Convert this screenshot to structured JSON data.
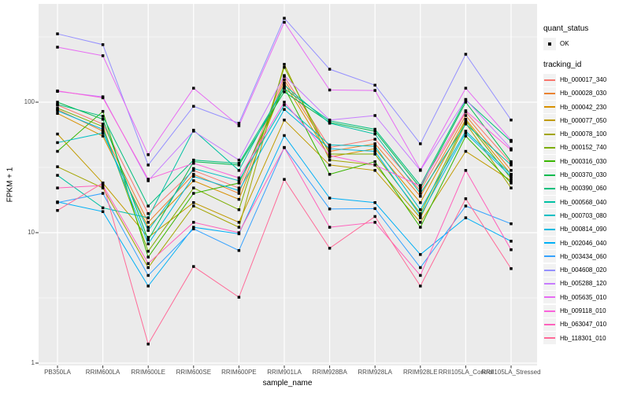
{
  "colors": {
    "background": "#FFFFFF",
    "panel_bg": "#EBEBEB",
    "grid_major": "#FFFFFF",
    "grid_minor": "#FFFFFF",
    "axis_text": "#4D4D4D",
    "axis_title": "#000000",
    "tick_mark": "#333333",
    "legend_key_bg": "#F2F2F2",
    "point_marker": "#000000"
  },
  "legend": {
    "position": "right",
    "quant_status": {
      "title": "quant_status",
      "items": [
        {
          "label": "OK",
          "marker": "black-point"
        }
      ]
    },
    "tracking_id": {
      "title": "tracking_id"
    }
  },
  "chart_data": {
    "type": "line",
    "title": "",
    "xlabel": "sample_name",
    "ylabel": "FPKM + 1",
    "yscale": "log10",
    "ylim": [
      0.9,
      565
    ],
    "y_ticks": [
      1,
      10,
      100
    ],
    "y_minor_ticks": [
      3.162,
      31.62,
      316.2
    ],
    "grid": true,
    "legend_position": "right",
    "marker": "small black square at every point (quant_status = OK)",
    "categories": [
      "PB350LA",
      "RRIM600LA",
      "RRIM600LE",
      "RRIM600SE",
      "RRIM600PE",
      "RRIM901LA",
      "RRIM928BA",
      "RRIM928LA",
      "RRIM928LE",
      "RRII105LA_Control",
      "RRII105LA_Stressed"
    ],
    "series": [
      {
        "name": "Hb_000017_340",
        "color": "#F8766D",
        "values": [
          95,
          68,
          14,
          30,
          22,
          157,
          45,
          52,
          21,
          84,
          34
        ]
      },
      {
        "name": "Hb_000028_030",
        "color": "#EA8331",
        "values": [
          88,
          60,
          12,
          28,
          20,
          148,
          42,
          48,
          19,
          79,
          30
        ]
      },
      {
        "name": "Hb_000042_230",
        "color": "#D89000",
        "values": [
          82,
          55,
          11,
          25,
          18,
          140,
          38,
          44,
          17,
          74,
          28
        ]
      },
      {
        "name": "Hb_000077_050",
        "color": "#C09B00",
        "values": [
          57,
          24,
          9.2,
          17,
          12,
          73,
          33,
          30,
          12,
          42,
          25
        ]
      },
      {
        "name": "Hb_000078_100",
        "color": "#A3A500",
        "values": [
          32,
          22,
          5.4,
          16,
          11,
          195,
          36,
          33,
          13,
          69,
          22
        ]
      },
      {
        "name": "Hb_000152_740",
        "color": "#7CAE00",
        "values": [
          90,
          65,
          7.2,
          22,
          15,
          185,
          40,
          40,
          14,
          72,
          26
        ]
      },
      {
        "name": "Hb_000316_030",
        "color": "#39B600",
        "values": [
          42,
          85,
          6.5,
          20,
          24,
          130,
          28,
          35,
          11,
          55,
          24
        ]
      },
      {
        "name": "Hb_000370_030",
        "color": "#00BB4E",
        "values": [
          100,
          74,
          8.8,
          35,
          33,
          120,
          70,
          60,
          22,
          100,
          35
        ]
      },
      {
        "name": "Hb_000390_060",
        "color": "#00BF7D",
        "values": [
          96,
          78,
          16,
          36,
          34,
          127,
          72,
          62,
          23,
          104,
          50
        ]
      },
      {
        "name": "Hb_000568_040",
        "color": "#00C1A3",
        "values": [
          27.5,
          15.5,
          13,
          61,
          30,
          135,
          69,
          57,
          20,
          68,
          33
        ]
      },
      {
        "name": "Hb_000703_080",
        "color": "#00BFC4",
        "values": [
          49,
          58,
          10.4,
          31,
          25,
          95,
          47,
          46,
          15,
          60,
          28
        ]
      },
      {
        "name": "Hb_000814_090",
        "color": "#00BAE0",
        "values": [
          86,
          62,
          8.2,
          27,
          21,
          88,
          44,
          42,
          13.5,
          58,
          27
        ]
      },
      {
        "name": "Hb_002046_040",
        "color": "#00B0F6",
        "values": [
          17.2,
          14.5,
          3.9,
          11,
          9.8,
          55.5,
          18.4,
          17,
          6.8,
          13,
          8.6
        ]
      },
      {
        "name": "Hb_003434_060",
        "color": "#35A2FF",
        "values": [
          17,
          20,
          4.7,
          10.7,
          7.3,
          45,
          15.2,
          15.3,
          5.4,
          16,
          11.7
        ]
      },
      {
        "name": "Hb_004608_020",
        "color": "#9590FF",
        "values": [
          334,
          276,
          33,
          93,
          69,
          440,
          179,
          135,
          48,
          233,
          73
        ]
      },
      {
        "name": "Hb_005288_120",
        "color": "#C77CFF",
        "values": [
          121,
          110,
          25,
          60,
          36,
          160,
          73,
          79,
          30,
          105,
          44
        ]
      },
      {
        "name": "Hb_005635_010",
        "color": "#E76BF3",
        "values": [
          264,
          227,
          39.6,
          128,
          66,
          410,
          124,
          123,
          30.3,
          128,
          51
        ]
      },
      {
        "name": "Hb_009118_010",
        "color": "#FA62DB",
        "values": [
          122,
          108,
          25.7,
          34,
          26.3,
          100,
          39,
          33,
          22.8,
          86,
          43
        ]
      },
      {
        "name": "Hb_063047_010",
        "color": "#FF62BC",
        "values": [
          22,
          23,
          5.8,
          12,
          10,
          44.8,
          11,
          12,
          4.7,
          30,
          7.4
        ]
      },
      {
        "name": "Hb_118301_010",
        "color": "#FF6A98",
        "values": [
          14.8,
          24,
          1.4,
          5.5,
          3.2,
          25.6,
          7.6,
          13.3,
          3.9,
          18.2,
          5.3
        ]
      }
    ]
  }
}
